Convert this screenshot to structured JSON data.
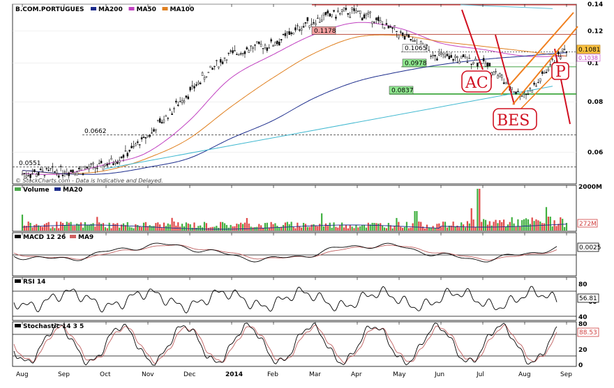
{
  "title": "B.COM.PORTUGUES",
  "legend_main": [
    {
      "name": "MA200",
      "color": "#1c2c8c"
    },
    {
      "name": "MA50",
      "color": "#c040c0"
    },
    {
      "name": "MA100",
      "color": "#e08020"
    }
  ],
  "watermark": "© StockCharts.com - Data is Indicative and Delayed.",
  "price_axis": {
    "ticks": [
      "0.14",
      "0.12",
      "0.1",
      "0.08",
      "0.06"
    ]
  },
  "price_labels": {
    "last": "0.1081",
    "ma": "0.1038"
  },
  "levels": [
    {
      "label": "0.1178",
      "value": 0.1178
    },
    {
      "label": "0.1065",
      "value": 0.1065
    },
    {
      "label": "0.0978",
      "value": 0.0978
    },
    {
      "label": "0.0837",
      "value": 0.0837
    },
    {
      "label": "0.0662",
      "value": 0.0662
    },
    {
      "label": "0.0551",
      "value": 0.0551
    }
  ],
  "annotations": {
    "ac": "AC",
    "bes": "BES",
    "p": "P"
  },
  "volume": {
    "title": "Volume",
    "ma_label": "MA20",
    "axis_top": "2000M",
    "last_label": "272M"
  },
  "macd": {
    "title": "MACD 12 26",
    "signal_label": "MA9",
    "last_label": "0.0025"
  },
  "rsi": {
    "title": "RSI 14",
    "ticks": [
      "80",
      "60",
      "40"
    ],
    "last_label": "56.81"
  },
  "stoch": {
    "title": "Stochastic 14 3 5",
    "ticks": [
      "80",
      "20",
      "0"
    ],
    "last_label": "88.53"
  },
  "x_axis": [
    "Aug",
    "Sep",
    "Oct",
    "Nov",
    "Dec",
    "2014",
    "Feb",
    "Mar",
    "Apr",
    "May",
    "Jun",
    "Jul",
    "Aug",
    "Sep"
  ],
  "chart_data": {
    "type": "line",
    "title": "B.COM.PORTUGUES",
    "xlabel": "",
    "ylabel": "",
    "ylim": [
      0.05,
      0.14
    ],
    "x": [
      "Aug",
      "Sep",
      "Oct",
      "Nov",
      "Dec",
      "2014",
      "Feb",
      "Mar",
      "Apr",
      "May",
      "Jun",
      "Jul",
      "Aug",
      "Sep"
    ],
    "series": [
      {
        "name": "B.COM.PORTUGUES",
        "values": [
          0.053,
          0.054,
          0.056,
          0.066,
          0.085,
          0.105,
          0.112,
          0.128,
          0.133,
          0.118,
          0.104,
          0.1,
          0.084,
          0.108
        ]
      },
      {
        "name": "MA50",
        "values": [
          0.053,
          0.053,
          0.056,
          0.06,
          0.072,
          0.092,
          0.105,
          0.118,
          0.126,
          0.122,
          0.112,
          0.108,
          0.104,
          0.104
        ]
      },
      {
        "name": "MA100",
        "values": [
          0.054,
          0.053,
          0.054,
          0.058,
          0.065,
          0.078,
          0.092,
          0.106,
          0.116,
          0.117,
          0.113,
          0.11,
          0.107,
          0.104
        ]
      },
      {
        "name": "MA200",
        "values": [
          0.054,
          0.053,
          0.053,
          0.055,
          0.058,
          0.065,
          0.072,
          0.082,
          0.09,
          0.095,
          0.099,
          0.102,
          0.104,
          0.106
        ]
      }
    ]
  }
}
